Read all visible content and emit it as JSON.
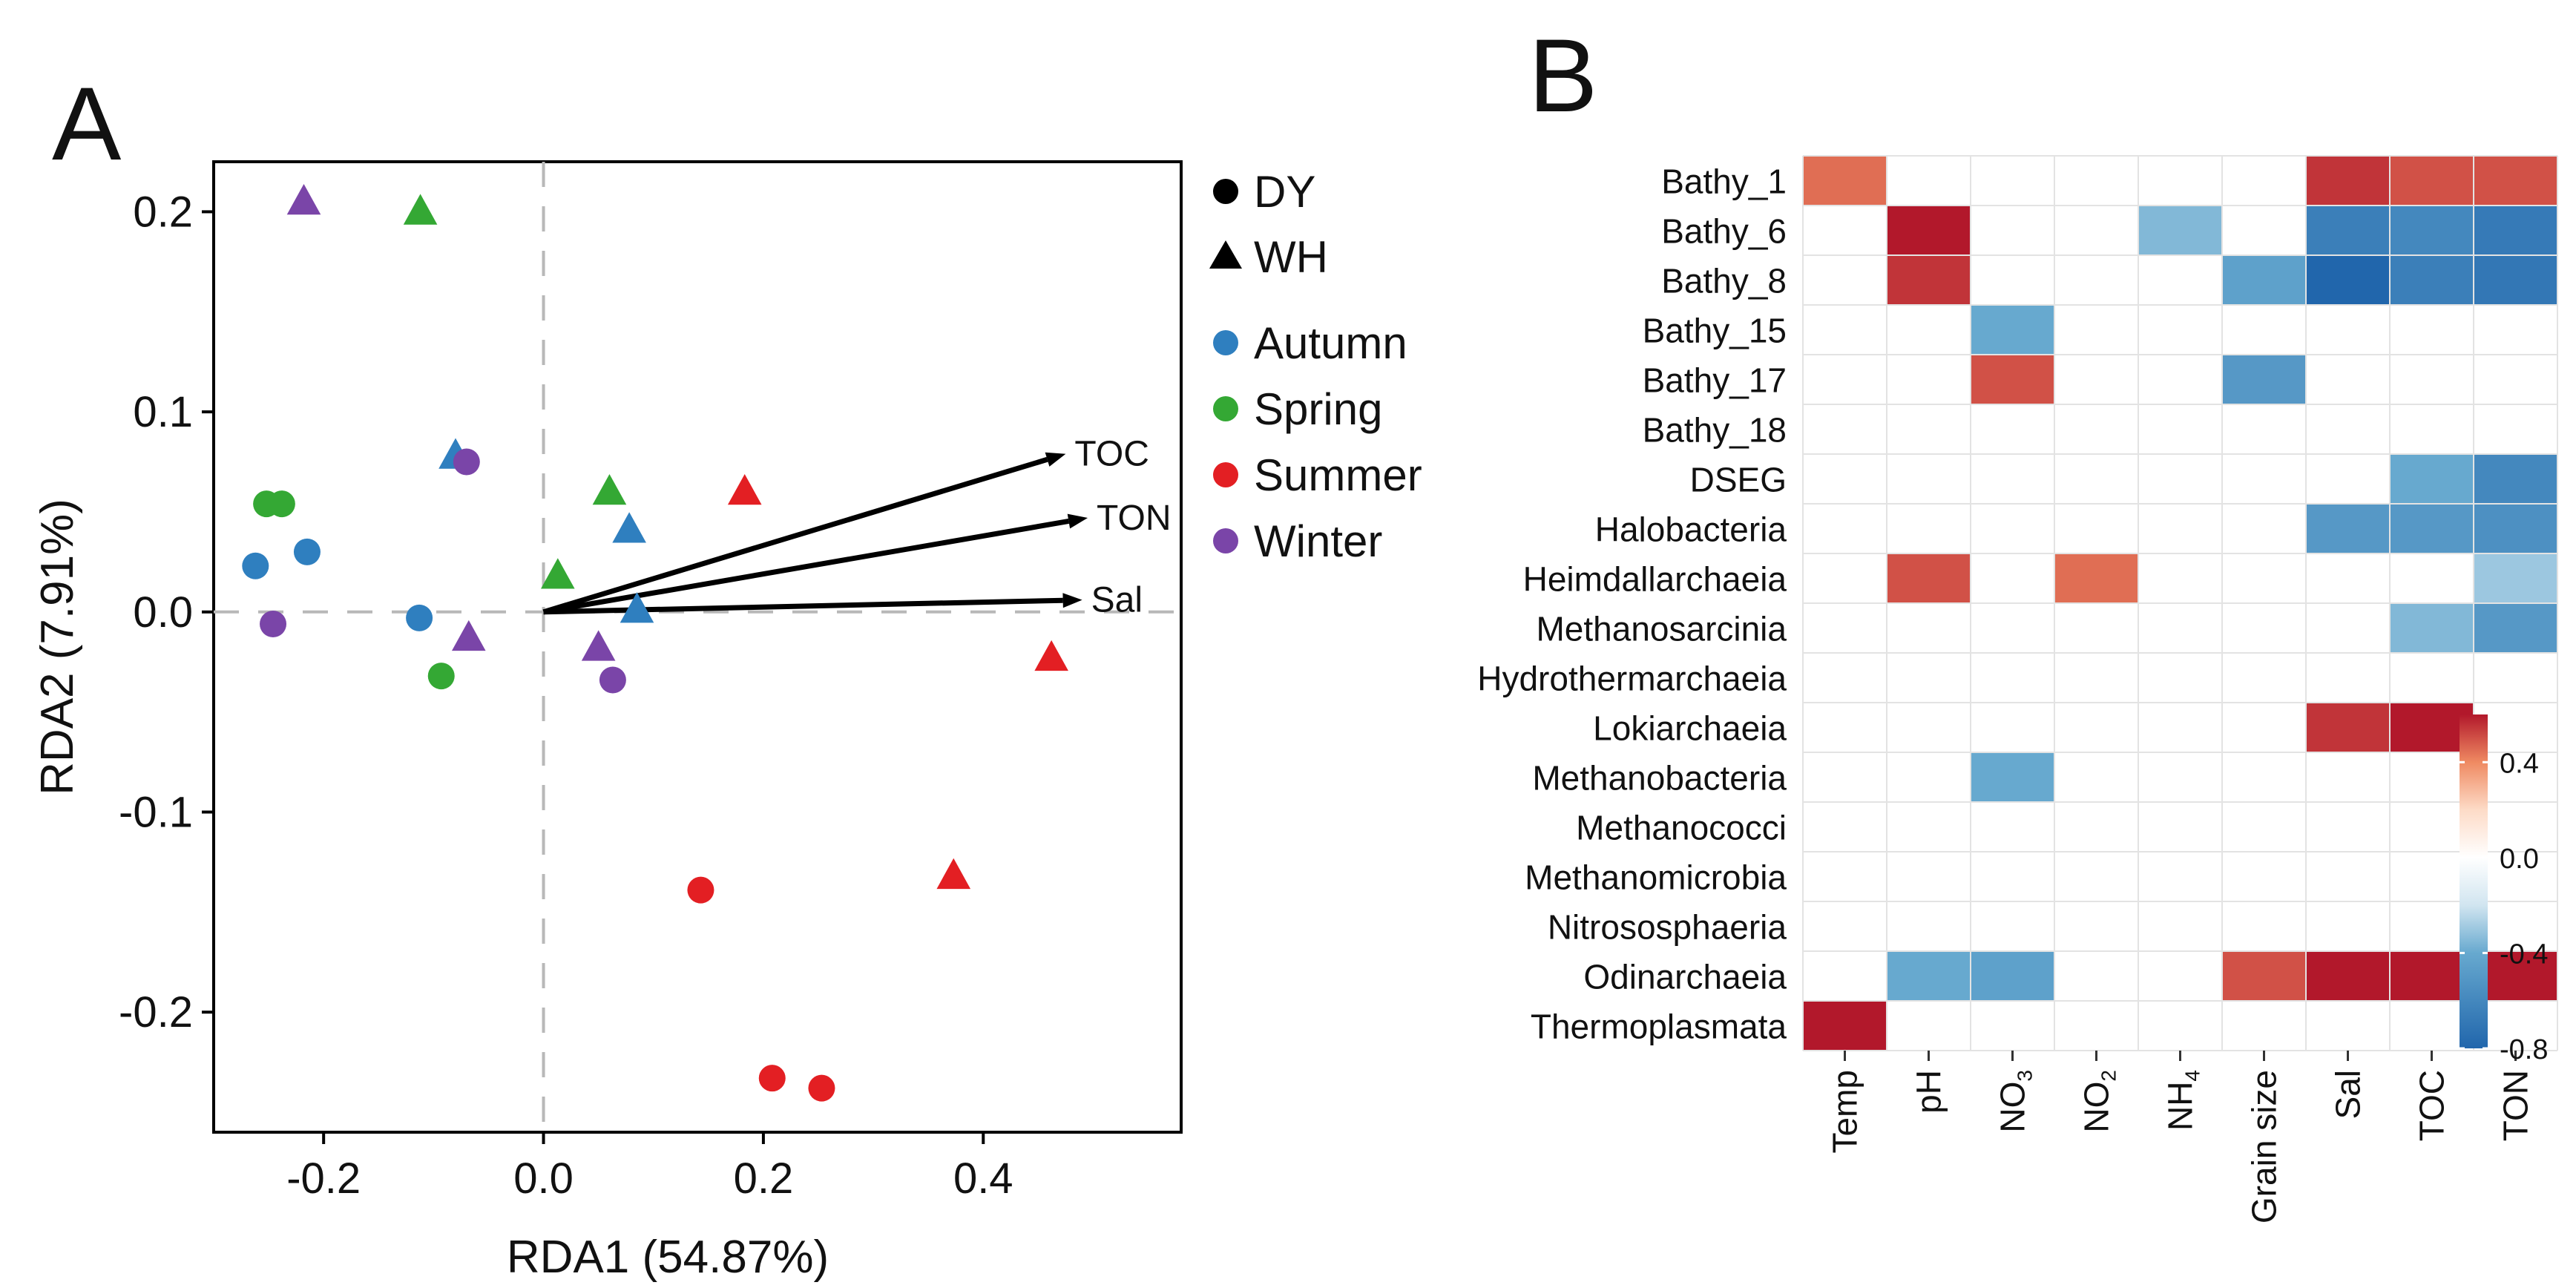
{
  "panel_a": {
    "letter": "A",
    "chart_data": {
      "type": "scatter",
      "xlabel": "RDA1 (54.87%)",
      "ylabel": "RDA2 (7.91%)",
      "xlim": [
        -0.3,
        0.58
      ],
      "ylim": [
        -0.26,
        0.225
      ],
      "xticks": [
        -0.2,
        0.0,
        0.2,
        0.4
      ],
      "xtick_labels": [
        "-0.2",
        "0.0",
        "0.2",
        "0.4"
      ],
      "yticks": [
        -0.2,
        -0.1,
        0.0,
        0.1,
        0.2
      ],
      "ytick_labels": [
        "-0.2",
        "-0.1",
        "0.0",
        "0.1",
        "0.2"
      ],
      "season_colors": {
        "Autumn": "#2f7fbf",
        "Spring": "#34a834",
        "Summer": "#e31f23",
        "Winter": "#7a45a8"
      },
      "points": [
        {
          "x": -0.218,
          "y": 0.205,
          "site": "WH",
          "season": "Winter"
        },
        {
          "x": -0.112,
          "y": 0.2,
          "site": "WH",
          "season": "Spring"
        },
        {
          "x": -0.08,
          "y": 0.078,
          "site": "WH",
          "season": "Autumn"
        },
        {
          "x": -0.07,
          "y": 0.075,
          "site": "DY",
          "season": "Winter"
        },
        {
          "x": -0.252,
          "y": 0.054,
          "site": "DY",
          "season": "Spring"
        },
        {
          "x": -0.238,
          "y": 0.054,
          "site": "DY",
          "season": "Spring"
        },
        {
          "x": -0.215,
          "y": 0.03,
          "site": "DY",
          "season": "Autumn"
        },
        {
          "x": -0.262,
          "y": 0.023,
          "site": "DY",
          "season": "Autumn"
        },
        {
          "x": -0.246,
          "y": -0.006,
          "site": "DY",
          "season": "Winter"
        },
        {
          "x": -0.113,
          "y": -0.003,
          "site": "DY",
          "season": "Autumn"
        },
        {
          "x": -0.068,
          "y": -0.013,
          "site": "WH",
          "season": "Winter"
        },
        {
          "x": -0.093,
          "y": -0.032,
          "site": "DY",
          "season": "Spring"
        },
        {
          "x": 0.013,
          "y": 0.018,
          "site": "WH",
          "season": "Spring"
        },
        {
          "x": 0.06,
          "y": 0.06,
          "site": "WH",
          "season": "Spring"
        },
        {
          "x": 0.078,
          "y": 0.041,
          "site": "WH",
          "season": "Autumn"
        },
        {
          "x": 0.085,
          "y": 0.001,
          "site": "WH",
          "season": "Autumn"
        },
        {
          "x": 0.05,
          "y": -0.018,
          "site": "WH",
          "season": "Winter"
        },
        {
          "x": 0.063,
          "y": -0.034,
          "site": "DY",
          "season": "Winter"
        },
        {
          "x": 0.183,
          "y": 0.06,
          "site": "WH",
          "season": "Summer"
        },
        {
          "x": 0.462,
          "y": -0.023,
          "site": "WH",
          "season": "Summer"
        },
        {
          "x": 0.373,
          "y": -0.132,
          "site": "WH",
          "season": "Summer"
        },
        {
          "x": 0.143,
          "y": -0.139,
          "site": "DY",
          "season": "Summer"
        },
        {
          "x": 0.208,
          "y": -0.233,
          "site": "DY",
          "season": "Summer"
        },
        {
          "x": 0.253,
          "y": -0.238,
          "site": "DY",
          "season": "Summer"
        }
      ],
      "arrows": [
        {
          "label": "TOC",
          "x": 0.475,
          "y": 0.079
        },
        {
          "label": "TON",
          "x": 0.495,
          "y": 0.047
        },
        {
          "label": "Sal",
          "x": 0.49,
          "y": 0.006
        }
      ]
    },
    "legend": {
      "shapes": [
        {
          "label": "DY",
          "shape": "circle"
        },
        {
          "label": "WH",
          "shape": "triangle"
        }
      ],
      "seasons": [
        {
          "label": "Autumn",
          "color": "#2f7fbf"
        },
        {
          "label": "Spring",
          "color": "#34a834"
        },
        {
          "label": "Summer",
          "color": "#e31f23"
        },
        {
          "label": "Winter",
          "color": "#7a45a8"
        }
      ]
    }
  },
  "panel_b": {
    "letter": "B",
    "chart_data": {
      "type": "heatmap",
      "rows": [
        "Bathy_1",
        "Bathy_6",
        "Bathy_8",
        "Bathy_15",
        "Bathy_17",
        "Bathy_18",
        "DSEG",
        "Halobacteria",
        "Heimdallarchaeia",
        "Methanosarcinia",
        "Hydrothermarchaeia",
        "Lokiarchaeia",
        "Methanobacteria",
        "Methanococci",
        "Methanomicrobia",
        "Nitrososphaeria",
        "Odinarchaeia",
        "Thermoplasmata"
      ],
      "columns": [
        {
          "base": "Temp",
          "sub": ""
        },
        {
          "base": "pH",
          "sub": ""
        },
        {
          "base": "NO",
          "sub": "3"
        },
        {
          "base": "NO",
          "sub": "2"
        },
        {
          "base": "NH",
          "sub": "4"
        },
        {
          "base": "Grain size",
          "sub": ""
        },
        {
          "base": "Sal",
          "sub": ""
        },
        {
          "base": "TOC",
          "sub": ""
        },
        {
          "base": "TON",
          "sub": ""
        }
      ],
      "values": [
        [
          0.45,
          0,
          0,
          0,
          0,
          0,
          0.55,
          0.5,
          0.5
        ],
        [
          0,
          0.65,
          0,
          0,
          -0.35,
          0,
          -0.65,
          -0.6,
          -0.68
        ],
        [
          0,
          0.55,
          0,
          0,
          0,
          -0.45,
          -0.8,
          -0.65,
          -0.7
        ],
        [
          0,
          0,
          -0.4,
          0,
          0,
          0,
          0,
          0,
          0
        ],
        [
          0,
          0,
          0.5,
          0,
          0,
          -0.5,
          0,
          0,
          0
        ],
        [
          0,
          0,
          0,
          0,
          0,
          0,
          0,
          0,
          0
        ],
        [
          0,
          0,
          0,
          0,
          0,
          0,
          0,
          -0.4,
          -0.6
        ],
        [
          0,
          0,
          0,
          0,
          0,
          0,
          -0.5,
          -0.5,
          -0.55
        ],
        [
          0,
          0.5,
          0,
          0.45,
          0,
          0,
          0,
          0,
          -0.3
        ],
        [
          0,
          0,
          0,
          0,
          0,
          0,
          0,
          -0.35,
          -0.5
        ],
        [
          0,
          0,
          0,
          0,
          0,
          0,
          0,
          0,
          0
        ],
        [
          0,
          0,
          0,
          0,
          0,
          0,
          0.55,
          0.65,
          0
        ],
        [
          0,
          0,
          -0.4,
          0,
          0,
          0,
          0,
          0,
          0
        ],
        [
          0,
          0,
          0,
          0,
          0,
          0,
          0,
          0,
          0
        ],
        [
          0,
          0,
          0,
          0,
          0,
          0,
          0,
          0,
          0
        ],
        [
          0,
          0,
          0,
          0,
          0,
          0,
          0,
          0,
          0
        ],
        [
          0,
          -0.4,
          -0.45,
          0,
          0,
          0.5,
          0.7,
          0.85,
          0.72
        ],
        [
          0.65,
          0,
          0,
          0,
          0,
          0,
          0,
          0,
          0
        ]
      ],
      "colorscale": {
        "min": -0.8,
        "max": 0.6,
        "stops": [
          {
            "v": -0.8,
            "c": "#2166ac"
          },
          {
            "v": -0.4,
            "c": "#67a9cf"
          },
          {
            "v": -0.2,
            "c": "#d1e5f0"
          },
          {
            "v": 0.0,
            "c": "#ffffff"
          },
          {
            "v": 0.2,
            "c": "#fddbc7"
          },
          {
            "v": 0.4,
            "c": "#ef8a62"
          },
          {
            "v": 0.6,
            "c": "#b2182b"
          }
        ],
        "ticks": [
          0.4,
          0.0,
          -0.4,
          -0.8
        ],
        "tick_labels": [
          "0.4",
          "0.0",
          "-0.4",
          "-0.8"
        ]
      }
    }
  }
}
